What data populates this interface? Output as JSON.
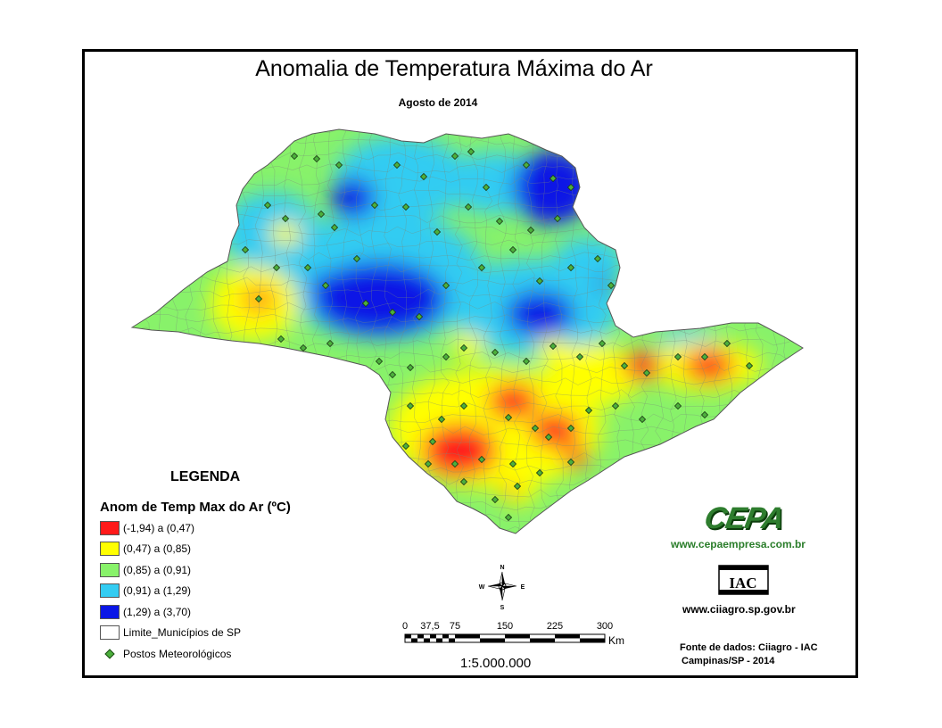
{
  "map": {
    "title": "Anomalia de Temperatura Máxima do Ar",
    "subtitle": "Agosto de 2014"
  },
  "legend": {
    "heading": "LEGENDA",
    "subheading": "Anom de Temp Max do Ar (ºC)",
    "classes": [
      {
        "label": "(-1,94) a (0,47)",
        "color": "#ff1a1a"
      },
      {
        "label": "(0,47) a (0,85)",
        "color": "#ffff00"
      },
      {
        "label": "(0,85) a (0,91)",
        "color": "#88f26a"
      },
      {
        "label": "(0,91) a (1,29)",
        "color": "#33ccf2"
      },
      {
        "label": "(1,29) a (3,70)",
        "color": "#0a16e6"
      }
    ],
    "boundary_label": "Limite_Municípios de SP",
    "stations_label": "Postos Meteorológicos"
  },
  "north_arrow": {
    "n": "N",
    "s": "S",
    "e": "E",
    "w": "W"
  },
  "scale_bar": {
    "ticks": [
      "0",
      "37,5",
      "75",
      "150",
      "225",
      "300"
    ],
    "tick_values_km": [
      0,
      37.5,
      75,
      150,
      225,
      300
    ],
    "unit": "Km",
    "ratio": "1:5.000.000"
  },
  "credits": {
    "cepa_logo_text": "CEPA",
    "cepa_url": "www.cepaempresa.com.br",
    "iac_logo_text": "IAC",
    "ciiagro_url": "www.ciiagro.sp.gov.br",
    "source_line1": "Fonte de dados: Ciiagro - IAC",
    "source_line2": "Campinas/SP - 2014"
  }
}
